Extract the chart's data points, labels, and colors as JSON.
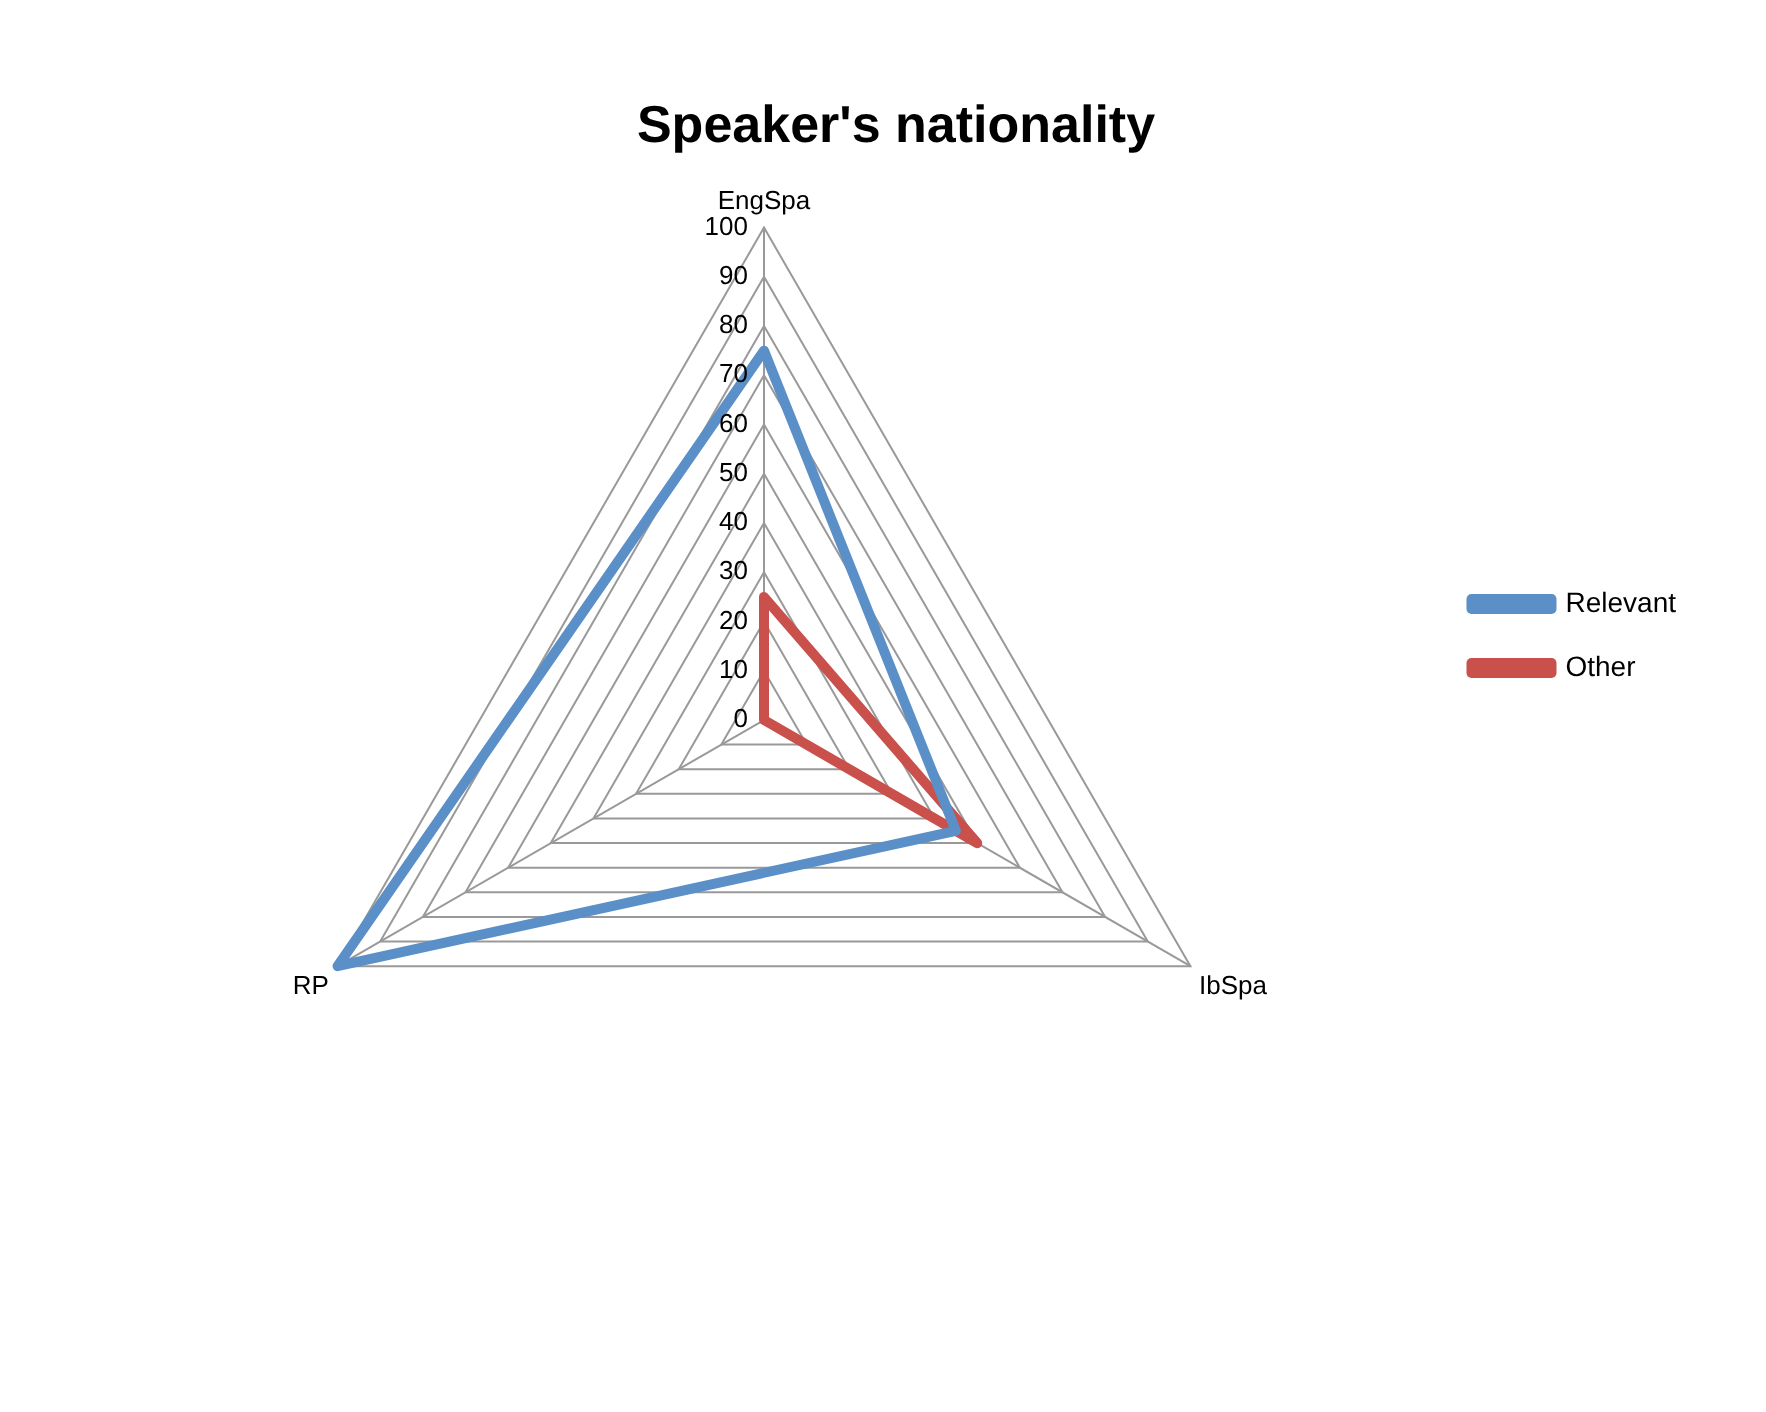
{
  "chart_data": {
    "type": "radar",
    "title": "Speaker's nationality",
    "categories": [
      "EngSpa",
      "IbSpa",
      "RP"
    ],
    "series": [
      {
        "name": "Relevant",
        "color": "#5b8fc7",
        "values": [
          75,
          45,
          100
        ]
      },
      {
        "name": "Other",
        "color": "#c9504b",
        "values": [
          25,
          50,
          0
        ]
      }
    ],
    "ylim": [
      0,
      100
    ],
    "yticks": [
      0,
      10,
      20,
      30,
      40,
      50,
      60,
      70,
      80,
      90,
      100
    ],
    "grid": true,
    "legend": "right",
    "marker": "none"
  }
}
